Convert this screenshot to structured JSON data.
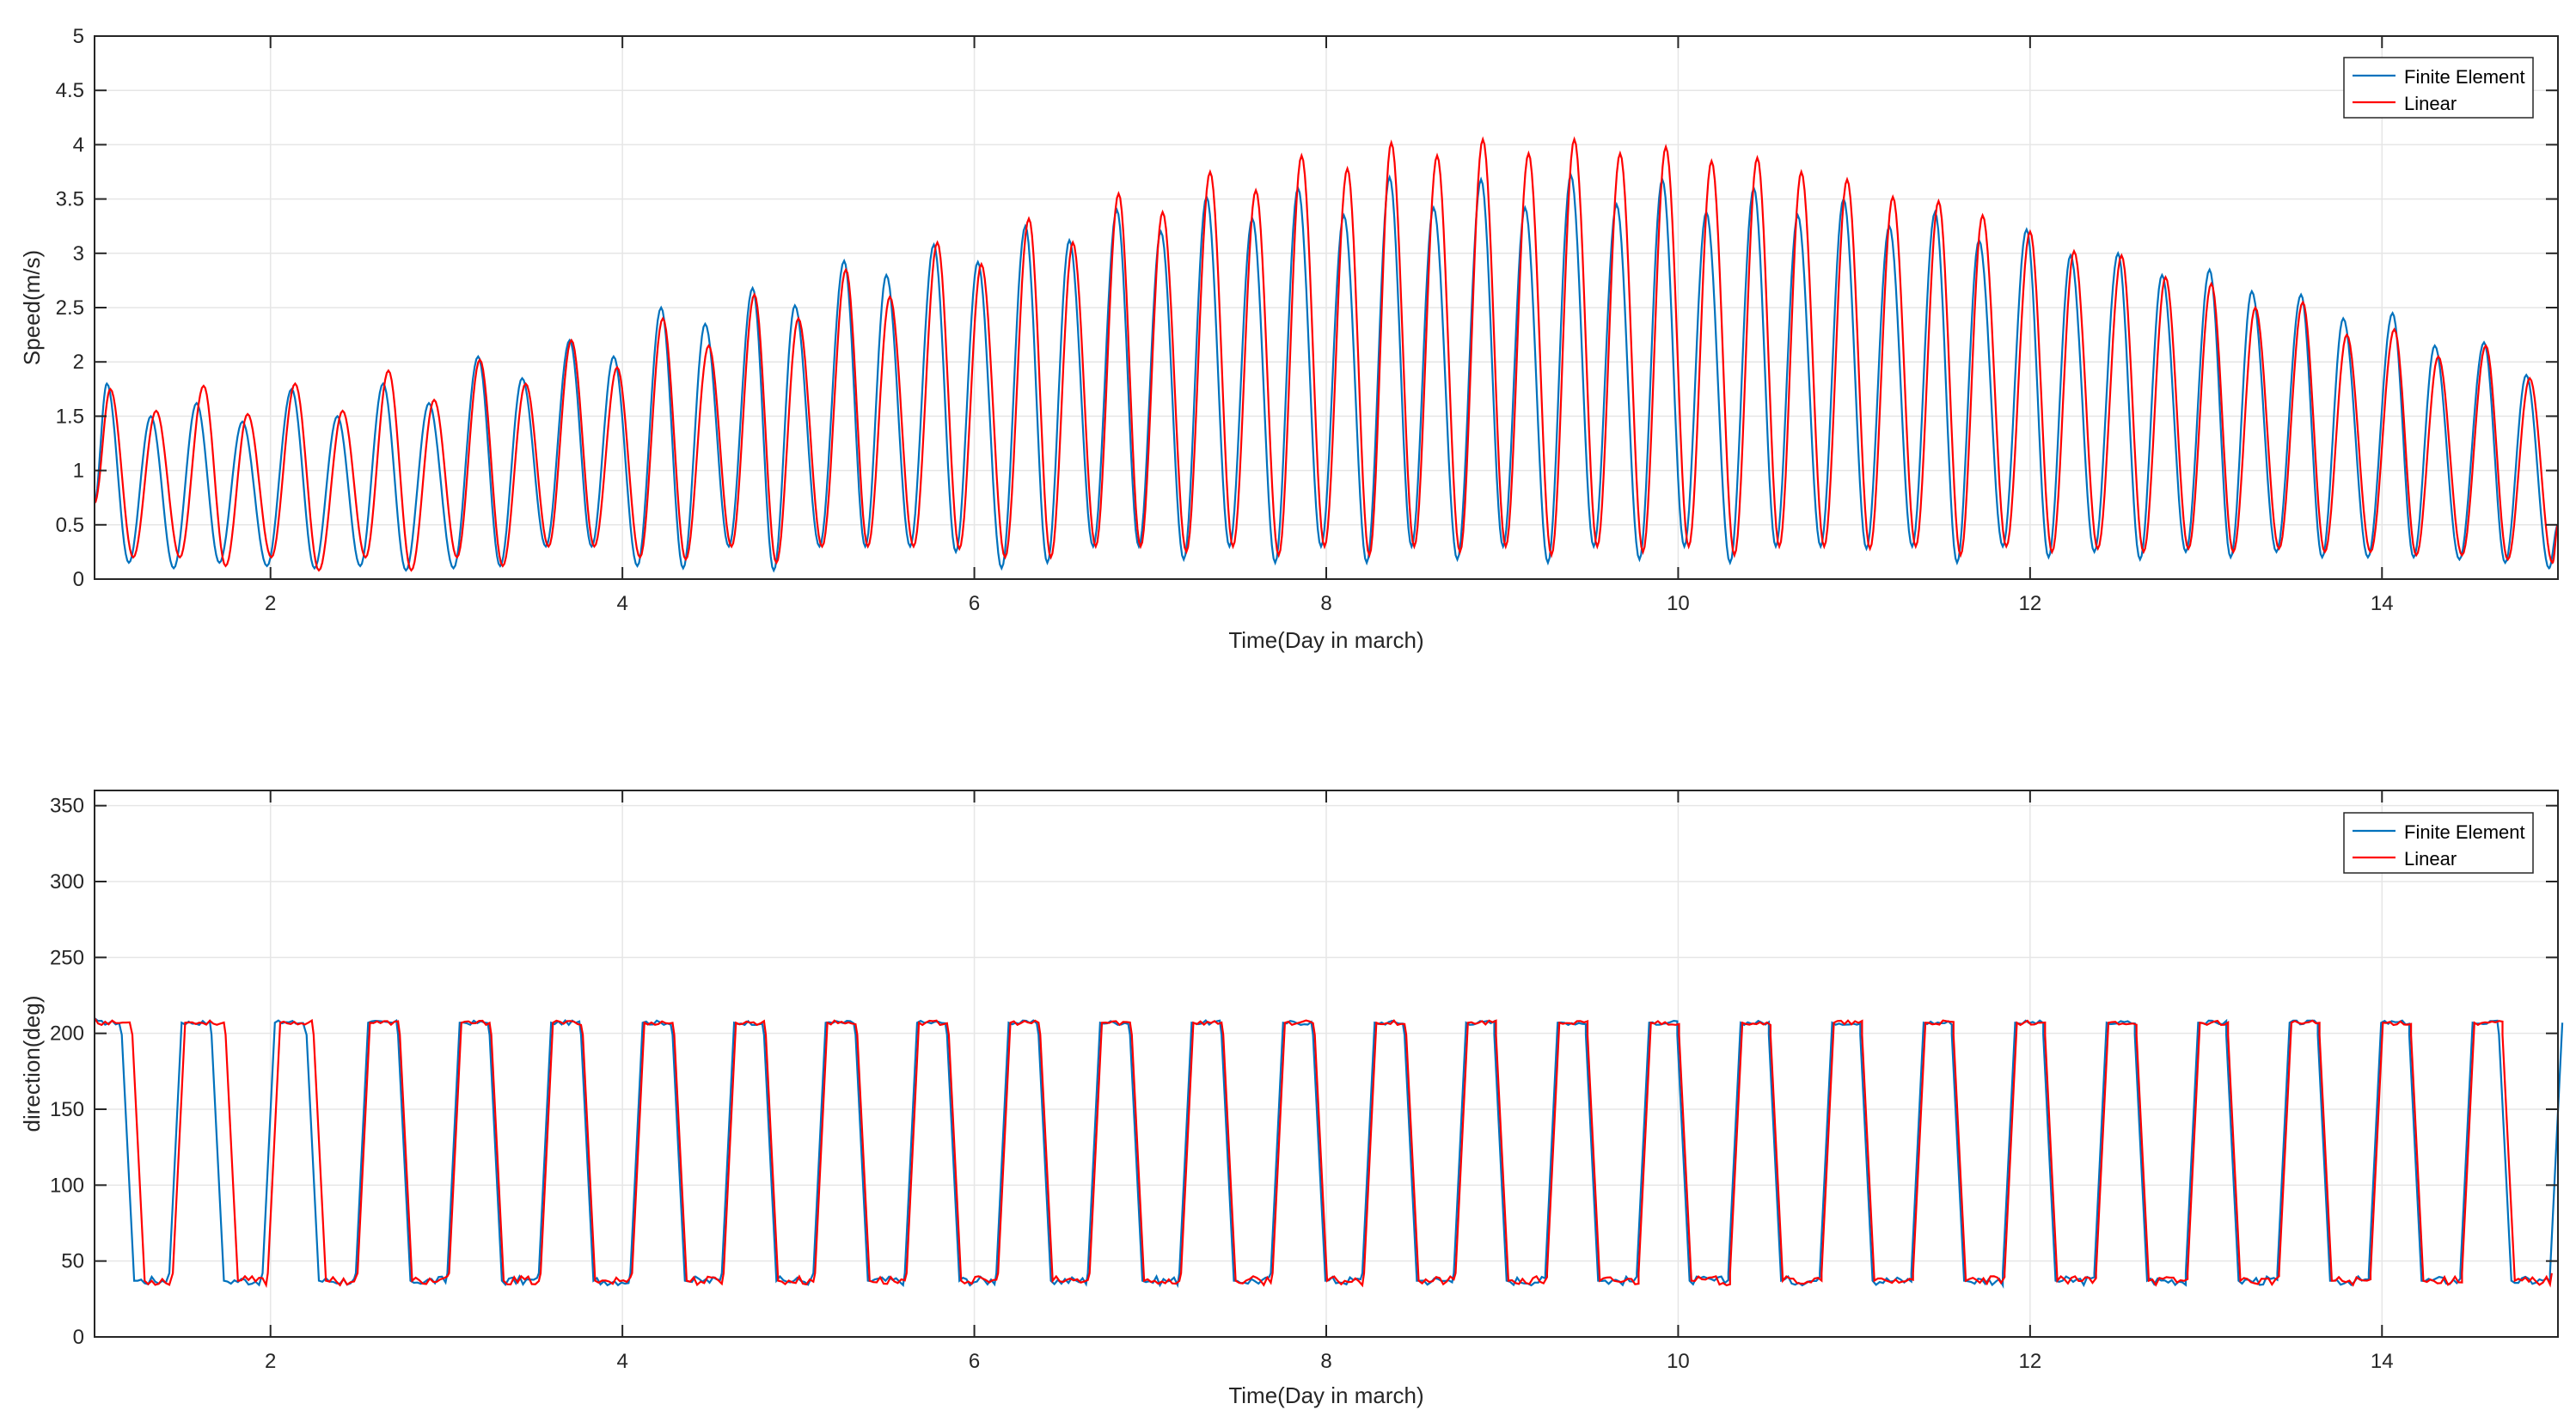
{
  "colors": {
    "finite_element": "#0072bd",
    "linear": "#ff0000",
    "grid": "#e6e6e6",
    "axis": "#262626"
  },
  "chart_data": [
    {
      "type": "line",
      "xlabel": "Time(Day in march)",
      "ylabel": "Speed(m/s)",
      "xlim": [
        1,
        15
      ],
      "ylim": [
        0,
        5
      ],
      "xticks": [
        2,
        4,
        6,
        8,
        10,
        12,
        14
      ],
      "xtick_labels": [
        "2",
        "4",
        "6",
        "8",
        "10",
        "12",
        "14"
      ],
      "yticks": [
        0,
        0.5,
        1,
        1.5,
        2,
        2.5,
        3,
        3.5,
        4,
        4.5,
        5
      ],
      "ytick_labels": [
        "0",
        "0.5",
        "1",
        "1.5",
        "2",
        "2.5",
        "3",
        "3.5",
        "4",
        "4.5",
        "5"
      ],
      "grid": true,
      "legend_position": "top-right",
      "semidiurnal_period_days": 0.5175,
      "series": [
        {
          "name": "Finite Element",
          "color": "#0072bd",
          "peak_day": [
            1.07,
            1.32,
            1.58,
            1.84,
            2.12,
            2.38,
            2.64,
            2.9,
            3.18,
            3.43,
            3.7,
            3.95,
            4.22,
            4.47,
            4.74,
            4.98,
            5.26,
            5.5,
            5.77,
            6.02,
            6.29,
            6.54,
            6.81,
            7.06,
            7.32,
            7.58,
            7.84,
            8.1,
            8.36,
            8.61,
            8.88,
            9.13,
            9.39,
            9.65,
            9.91,
            10.16,
            10.43,
            10.68,
            10.94,
            11.2,
            11.46,
            11.71,
            11.98,
            12.23,
            12.5,
            12.75,
            13.02,
            13.26,
            13.54,
            13.78,
            14.06,
            14.3,
            14.58,
            14.82
          ],
          "peak_speed": [
            1.8,
            1.5,
            1.62,
            1.45,
            1.75,
            1.5,
            1.8,
            1.62,
            2.05,
            1.85,
            2.2,
            2.05,
            2.5,
            2.35,
            2.68,
            2.52,
            2.93,
            2.8,
            3.08,
            2.92,
            3.25,
            3.12,
            3.4,
            3.2,
            3.52,
            3.32,
            3.6,
            3.35,
            3.7,
            3.42,
            3.68,
            3.42,
            3.72,
            3.45,
            3.68,
            3.38,
            3.6,
            3.35,
            3.5,
            3.25,
            3.38,
            3.12,
            3.22,
            2.98,
            3.0,
            2.8,
            2.85,
            2.65,
            2.62,
            2.4,
            2.45,
            2.15,
            2.18,
            1.88
          ],
          "trough_speed": [
            0.15,
            0.1,
            0.15,
            0.12,
            0.1,
            0.12,
            0.08,
            0.1,
            0.12,
            0.3,
            0.3,
            0.12,
            0.1,
            0.3,
            0.08,
            0.3,
            0.3,
            0.3,
            0.25,
            0.1,
            0.15,
            0.3,
            0.3,
            0.18,
            0.3,
            0.15,
            0.3,
            0.15,
            0.3,
            0.18,
            0.3,
            0.15,
            0.3,
            0.18,
            0.3,
            0.15,
            0.3,
            0.3,
            0.28,
            0.3,
            0.15,
            0.3,
            0.2,
            0.25,
            0.18,
            0.25,
            0.2,
            0.25,
            0.2,
            0.2,
            0.2,
            0.18,
            0.15,
            0.1
          ]
        },
        {
          "name": "Linear",
          "color": "#ff0000",
          "peak_day": [
            1.09,
            1.35,
            1.62,
            1.87,
            2.14,
            2.41,
            2.67,
            2.93,
            3.19,
            3.45,
            3.71,
            3.97,
            4.23,
            4.49,
            4.75,
            5.0,
            5.27,
            5.52,
            5.79,
            6.04,
            6.31,
            6.56,
            6.82,
            7.07,
            7.34,
            7.6,
            7.86,
            8.12,
            8.37,
            8.63,
            8.89,
            9.15,
            9.41,
            9.67,
            9.93,
            10.19,
            10.45,
            10.7,
            10.96,
            11.22,
            11.48,
            11.73,
            12.0,
            12.25,
            12.52,
            12.77,
            13.03,
            13.28,
            13.55,
            13.8,
            14.07,
            14.32,
            14.59,
            14.84
          ],
          "peak_speed": [
            1.75,
            1.55,
            1.78,
            1.52,
            1.8,
            1.55,
            1.92,
            1.65,
            2.02,
            1.8,
            2.2,
            1.95,
            2.4,
            2.15,
            2.62,
            2.4,
            2.85,
            2.6,
            3.1,
            2.9,
            3.32,
            3.1,
            3.55,
            3.38,
            3.75,
            3.58,
            3.9,
            3.78,
            4.02,
            3.9,
            4.05,
            3.92,
            4.05,
            3.92,
            3.98,
            3.85,
            3.88,
            3.75,
            3.68,
            3.52,
            3.48,
            3.35,
            3.2,
            3.02,
            2.98,
            2.78,
            2.72,
            2.5,
            2.55,
            2.25,
            2.3,
            2.05,
            2.15,
            1.85
          ],
          "trough_speed": [
            0.2,
            0.2,
            0.12,
            0.2,
            0.08,
            0.2,
            0.08,
            0.2,
            0.12,
            0.3,
            0.3,
            0.2,
            0.18,
            0.3,
            0.15,
            0.3,
            0.3,
            0.3,
            0.28,
            0.2,
            0.2,
            0.3,
            0.3,
            0.25,
            0.3,
            0.22,
            0.3,
            0.22,
            0.3,
            0.25,
            0.3,
            0.22,
            0.3,
            0.25,
            0.3,
            0.22,
            0.3,
            0.3,
            0.28,
            0.3,
            0.22,
            0.3,
            0.25,
            0.28,
            0.25,
            0.28,
            0.25,
            0.28,
            0.25,
            0.25,
            0.22,
            0.22,
            0.18,
            0.15
          ]
        }
      ]
    },
    {
      "type": "line",
      "xlabel": "Time(Day in march)",
      "ylabel": "direction(deg)",
      "xlim": [
        1,
        15
      ],
      "ylim": [
        0,
        360
      ],
      "xticks": [
        2,
        4,
        6,
        8,
        10,
        12,
        14
      ],
      "xtick_labels": [
        "2",
        "4",
        "6",
        "8",
        "10",
        "12",
        "14"
      ],
      "yticks": [
        0,
        50,
        100,
        150,
        200,
        250,
        300,
        350
      ],
      "ytick_labels": [
        "0",
        "50",
        "100",
        "150",
        "200",
        "250",
        "300",
        "350"
      ],
      "grid": true,
      "legend_position": "top-right",
      "flood_direction_deg": 207,
      "ebb_direction_deg": 37,
      "series": [
        {
          "name": "Finite Element",
          "color": "#0072bd",
          "switch_to_ebb_day": [
            1.19,
            1.7,
            2.24,
            2.76,
            3.28,
            3.8,
            4.32,
            4.84,
            5.36,
            5.88,
            6.4,
            6.92,
            7.44,
            7.96,
            8.48,
            8.99,
            9.51,
            10.03,
            10.55,
            11.07,
            11.59,
            12.11,
            12.63,
            13.15,
            13.67,
            14.19,
            14.7
          ],
          "switch_to_flood_day": [
            1.46,
            1.99,
            2.52,
            3.04,
            3.56,
            4.08,
            4.6,
            5.12,
            5.64,
            6.16,
            6.68,
            7.2,
            7.72,
            8.24,
            8.76,
            9.28,
            9.8,
            10.32,
            10.84,
            11.36,
            11.88,
            12.4,
            12.92,
            13.44,
            13.96,
            14.48,
            14.99
          ]
        },
        {
          "name": "Linear",
          "color": "#ff0000",
          "switch_to_ebb_day": [
            1.25,
            1.78,
            2.28,
            2.77,
            3.29,
            3.81,
            4.33,
            4.85,
            5.37,
            5.89,
            6.41,
            6.93,
            7.45,
            7.97,
            8.49,
            9.0,
            9.52,
            10.04,
            10.56,
            11.08,
            11.6,
            12.12,
            12.64,
            13.16,
            13.68,
            14.2,
            14.72
          ],
          "switch_to_flood_day": [
            1.48,
            2.02,
            2.53,
            3.05,
            3.57,
            4.09,
            4.61,
            5.13,
            5.65,
            6.17,
            6.69,
            7.21,
            7.73,
            8.25,
            8.77,
            9.29,
            9.81,
            10.33,
            10.85,
            11.37,
            11.89,
            12.41,
            12.93,
            13.45,
            13.97,
            14.49,
            15.0
          ]
        }
      ]
    }
  ]
}
